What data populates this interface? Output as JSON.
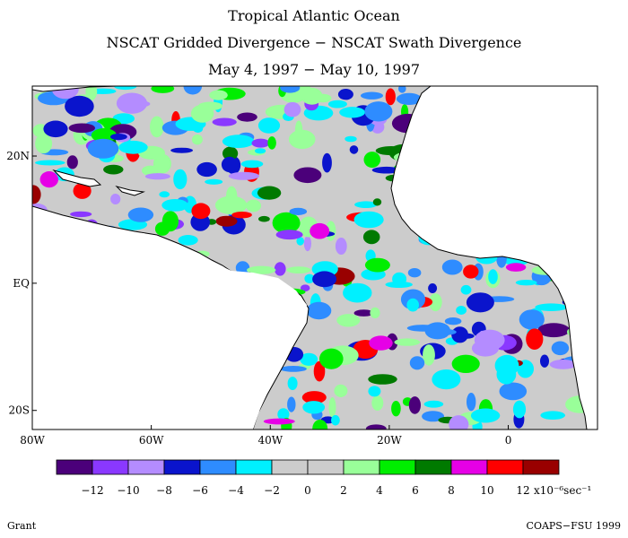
{
  "titles": {
    "line1": "Tropical Atlantic Ocean",
    "line2": "NSCAT Gridded Divergence − NSCAT Swath Divergence",
    "line3": "May 4, 1997 − May 10, 1997"
  },
  "axes": {
    "lon_ticks": [
      {
        "lon": -80,
        "label": "80W"
      },
      {
        "lon": -60,
        "label": "60W"
      },
      {
        "lon": -40,
        "label": "40W"
      },
      {
        "lon": -20,
        "label": "20W"
      },
      {
        "lon": 0,
        "label": "0"
      }
    ],
    "lat_ticks": [
      {
        "lat": 20,
        "label": "20N"
      },
      {
        "lat": 0,
        "label": "EQ"
      },
      {
        "lat": -20,
        "label": "20S"
      }
    ],
    "lon_range": [
      -80,
      15
    ],
    "lat_range": [
      -23,
      31
    ]
  },
  "legend": {
    "colors": [
      "#4b007a",
      "#8a38ff",
      "#b48cff",
      "#0a14cc",
      "#2e8cff",
      "#00f0ff",
      "#cccccc",
      "#cccccc",
      "#99ff99",
      "#00ee00",
      "#007a00",
      "#e600e6",
      "#ff0000",
      "#990000"
    ],
    "labels": [
      "−12",
      "−10",
      "−8",
      "−6",
      "−4",
      "−2",
      "0",
      "2",
      "4",
      "6",
      "8",
      "10",
      "12"
    ],
    "unit": "x10⁻⁶sec⁻¹"
  },
  "footer": {
    "left": "Grant",
    "right": "COAPS−FSU 1999"
  }
}
